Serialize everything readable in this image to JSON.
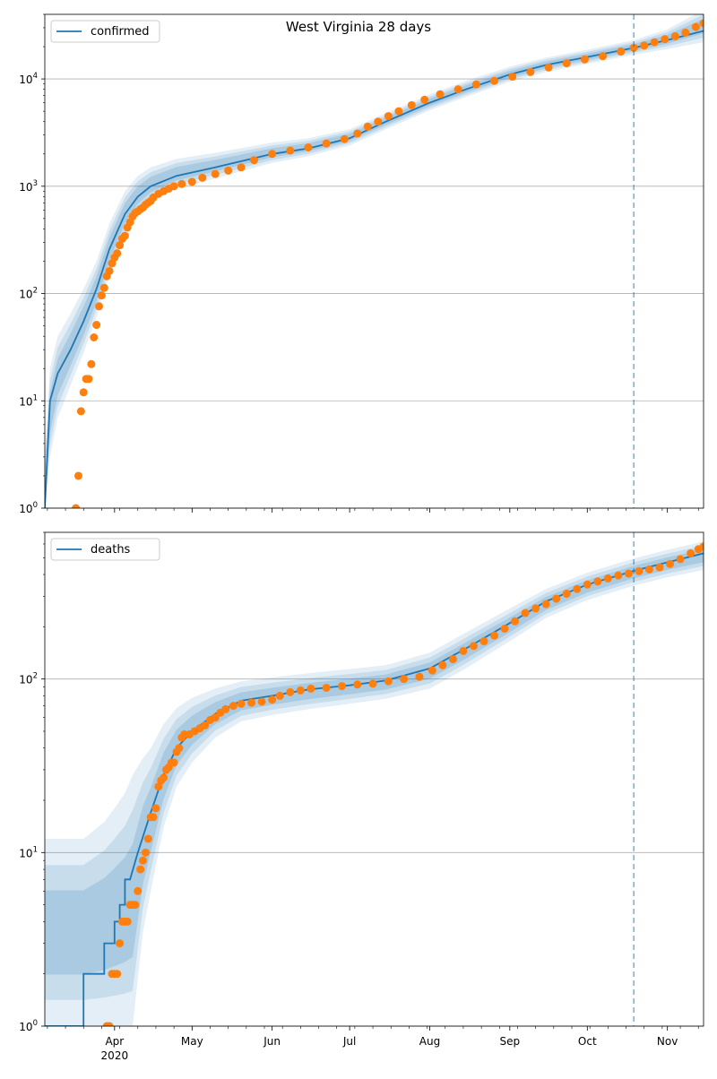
{
  "figure_title": "West Virginia 28 days",
  "colors": {
    "model": "#1f77b4",
    "band": "#1f77b4",
    "observed": "#ff7f0e",
    "forecast_line": "#1f77b4",
    "grid": "#b0b0b0"
  },
  "x_ticks": [
    {
      "date": "2020-04-01",
      "label": "Apr",
      "sublabel": "2020"
    },
    {
      "date": "2020-05-01",
      "label": "May"
    },
    {
      "date": "2020-06-01",
      "label": "Jun"
    },
    {
      "date": "2020-07-01",
      "label": "Jul"
    },
    {
      "date": "2020-08-01",
      "label": "Aug"
    },
    {
      "date": "2020-09-01",
      "label": "Sep"
    },
    {
      "date": "2020-10-01",
      "label": "Oct"
    },
    {
      "date": "2020-11-01",
      "label": "Nov"
    }
  ],
  "chart_data": [
    {
      "type": "line",
      "name": "confirmed",
      "legend": "confirmed",
      "legend_position": "top-left",
      "y_scale": "log",
      "ylim": [
        1,
        40000
      ],
      "xlim": [
        "2020-03-05",
        "2020-11-15"
      ],
      "forecast_start": "2020-10-19",
      "y_ticks": [
        {
          "value": 1,
          "base": "10",
          "exp": "0"
        },
        {
          "value": 10,
          "base": "10",
          "exp": "1"
        },
        {
          "value": 100,
          "base": "10",
          "exp": "2"
        },
        {
          "value": 1000,
          "base": "10",
          "exp": "3"
        },
        {
          "value": 10000,
          "base": "10",
          "exp": "4"
        }
      ],
      "model": [
        [
          "2020-03-05",
          1
        ],
        [
          "2020-03-07",
          10
        ],
        [
          "2020-03-10",
          18
        ],
        [
          "2020-03-15",
          30
        ],
        [
          "2020-03-20",
          55
        ],
        [
          "2020-03-25",
          110
        ],
        [
          "2020-03-30",
          260
        ],
        [
          "2020-04-05",
          550
        ],
        [
          "2020-04-10",
          800
        ],
        [
          "2020-04-15",
          1000
        ],
        [
          "2020-04-25",
          1250
        ],
        [
          "2020-05-10",
          1500
        ],
        [
          "2020-06-01",
          2000
        ],
        [
          "2020-06-15",
          2250
        ],
        [
          "2020-07-01",
          2800
        ],
        [
          "2020-07-15",
          4000
        ],
        [
          "2020-08-01",
          6000
        ],
        [
          "2020-08-15",
          8000
        ],
        [
          "2020-09-01",
          11000
        ],
        [
          "2020-09-15",
          13500
        ],
        [
          "2020-10-01",
          16000
        ],
        [
          "2020-10-19",
          19500
        ],
        [
          "2020-11-01",
          23000
        ],
        [
          "2020-11-15",
          28000
        ]
      ],
      "band": [
        [
          "2020-03-05",
          1,
          3
        ],
        [
          "2020-03-07",
          3,
          20
        ],
        [
          "2020-03-10",
          7,
          40
        ],
        [
          "2020-03-15",
          14,
          65
        ],
        [
          "2020-03-20",
          28,
          110
        ],
        [
          "2020-03-25",
          60,
          200
        ],
        [
          "2020-03-30",
          150,
          450
        ],
        [
          "2020-04-05",
          350,
          900
        ],
        [
          "2020-04-10",
          550,
          1250
        ],
        [
          "2020-04-15",
          720,
          1500
        ],
        [
          "2020-04-25",
          950,
          1800
        ],
        [
          "2020-05-10",
          1180,
          2050
        ],
        [
          "2020-06-01",
          1650,
          2550
        ],
        [
          "2020-06-15",
          1900,
          2800
        ],
        [
          "2020-07-01",
          2400,
          3400
        ],
        [
          "2020-07-15",
          3400,
          4800
        ],
        [
          "2020-08-01",
          5100,
          7200
        ],
        [
          "2020-08-15",
          6800,
          9600
        ],
        [
          "2020-09-01",
          9400,
          13000
        ],
        [
          "2020-09-15",
          11600,
          15800
        ],
        [
          "2020-10-01",
          13800,
          18700
        ],
        [
          "2020-10-19",
          16800,
          23000
        ],
        [
          "2020-11-01",
          19000,
          29000
        ],
        [
          "2020-11-15",
          22000,
          44000
        ]
      ],
      "observed": [
        [
          "2020-03-17",
          1
        ],
        [
          "2020-03-18",
          2
        ],
        [
          "2020-03-19",
          8
        ],
        [
          "2020-03-20",
          12
        ],
        [
          "2020-03-21",
          16
        ],
        [
          "2020-03-22",
          16
        ],
        [
          "2020-03-23",
          22
        ],
        [
          "2020-03-24",
          39
        ],
        [
          "2020-03-25",
          51
        ],
        [
          "2020-03-26",
          76
        ],
        [
          "2020-03-27",
          96
        ],
        [
          "2020-03-28",
          113
        ],
        [
          "2020-03-29",
          145
        ],
        [
          "2020-03-30",
          162
        ],
        [
          "2020-03-31",
          191
        ],
        [
          "2020-04-01",
          217
        ],
        [
          "2020-04-02",
          237
        ],
        [
          "2020-04-03",
          282
        ],
        [
          "2020-04-04",
          324
        ],
        [
          "2020-04-05",
          345
        ],
        [
          "2020-04-06",
          412
        ],
        [
          "2020-04-07",
          462
        ],
        [
          "2020-04-08",
          523
        ],
        [
          "2020-04-09",
          563
        ],
        [
          "2020-04-10",
          583
        ],
        [
          "2020-04-11",
          611
        ],
        [
          "2020-04-12",
          633
        ],
        [
          "2020-04-13",
          673
        ],
        [
          "2020-04-14",
          702
        ],
        [
          "2020-04-15",
          728
        ],
        [
          "2020-04-16",
          785
        ],
        [
          "2020-04-18",
          850
        ],
        [
          "2020-04-20",
          900
        ],
        [
          "2020-04-22",
          950
        ],
        [
          "2020-04-24",
          1000
        ],
        [
          "2020-04-27",
          1050
        ],
        [
          "2020-05-01",
          1100
        ],
        [
          "2020-05-05",
          1200
        ],
        [
          "2020-05-10",
          1300
        ],
        [
          "2020-05-15",
          1400
        ],
        [
          "2020-05-20",
          1500
        ],
        [
          "2020-05-25",
          1750
        ],
        [
          "2020-06-01",
          2000
        ],
        [
          "2020-06-08",
          2150
        ],
        [
          "2020-06-15",
          2300
        ],
        [
          "2020-06-22",
          2500
        ],
        [
          "2020-06-29",
          2750
        ],
        [
          "2020-07-04",
          3100
        ],
        [
          "2020-07-08",
          3600
        ],
        [
          "2020-07-12",
          4000
        ],
        [
          "2020-07-16",
          4500
        ],
        [
          "2020-07-20",
          5000
        ],
        [
          "2020-07-25",
          5700
        ],
        [
          "2020-07-30",
          6400
        ],
        [
          "2020-08-05",
          7200
        ],
        [
          "2020-08-12",
          8000
        ],
        [
          "2020-08-19",
          8900
        ],
        [
          "2020-08-26",
          9600
        ],
        [
          "2020-09-02",
          10500
        ],
        [
          "2020-09-09",
          11600
        ],
        [
          "2020-09-16",
          12800
        ],
        [
          "2020-09-23",
          14000
        ],
        [
          "2020-09-30",
          15200
        ],
        [
          "2020-10-07",
          16300
        ],
        [
          "2020-10-14",
          18000
        ],
        [
          "2020-10-19",
          19500
        ],
        [
          "2020-10-23",
          20500
        ],
        [
          "2020-10-27",
          22000
        ],
        [
          "2020-10-31",
          23500
        ],
        [
          "2020-11-04",
          25000
        ],
        [
          "2020-11-08",
          27000
        ],
        [
          "2020-11-12",
          30500
        ],
        [
          "2020-11-15",
          33000
        ]
      ]
    },
    {
      "type": "line",
      "name": "deaths",
      "legend": "deaths",
      "legend_position": "top-left",
      "y_scale": "log",
      "ylim": [
        1,
        700
      ],
      "xlim": [
        "2020-03-05",
        "2020-11-15"
      ],
      "forecast_start": "2020-10-19",
      "y_ticks": [
        {
          "value": 1,
          "base": "10",
          "exp": "0"
        },
        {
          "value": 10,
          "base": "10",
          "exp": "1"
        },
        {
          "value": 100,
          "base": "10",
          "exp": "2"
        }
      ],
      "model": [
        [
          "2020-03-05",
          1
        ],
        [
          "2020-03-20",
          1
        ],
        [
          "2020-03-20",
          2
        ],
        [
          "2020-03-28",
          2
        ],
        [
          "2020-03-28",
          3
        ],
        [
          "2020-04-01",
          3
        ],
        [
          "2020-04-01",
          4
        ],
        [
          "2020-04-03",
          4
        ],
        [
          "2020-04-03",
          5
        ],
        [
          "2020-04-05",
          5
        ],
        [
          "2020-04-05",
          7
        ],
        [
          "2020-04-07",
          7
        ],
        [
          "2020-04-10",
          10
        ],
        [
          "2020-04-15",
          17
        ],
        [
          "2020-04-20",
          28
        ],
        [
          "2020-04-25",
          40
        ],
        [
          "2020-05-01",
          50
        ],
        [
          "2020-05-10",
          63
        ],
        [
          "2020-05-20",
          75
        ],
        [
          "2020-06-01",
          80
        ],
        [
          "2020-06-15",
          87
        ],
        [
          "2020-07-01",
          92
        ],
        [
          "2020-07-15",
          98
        ],
        [
          "2020-08-01",
          115
        ],
        [
          "2020-08-15",
          150
        ],
        [
          "2020-09-01",
          210
        ],
        [
          "2020-09-15",
          280
        ],
        [
          "2020-10-01",
          350
        ],
        [
          "2020-10-19",
          420
        ],
        [
          "2020-11-01",
          470
        ],
        [
          "2020-11-15",
          530
        ]
      ],
      "band": [
        [
          "2020-03-05",
          1,
          12
        ],
        [
          "2020-03-20",
          1,
          12
        ],
        [
          "2020-03-28",
          1,
          15
        ],
        [
          "2020-04-01",
          1,
          18
        ],
        [
          "2020-04-05",
          1,
          22
        ],
        [
          "2020-04-08",
          1,
          28
        ],
        [
          "2020-04-12",
          3.5,
          35
        ],
        [
          "2020-04-15",
          6,
          40
        ],
        [
          "2020-04-20",
          14,
          55
        ],
        [
          "2020-04-25",
          24,
          68
        ],
        [
          "2020-05-01",
          33,
          78
        ],
        [
          "2020-05-10",
          46,
          88
        ],
        [
          "2020-05-20",
          57,
          97
        ],
        [
          "2020-06-01",
          62,
          102
        ],
        [
          "2020-06-15",
          67,
          108
        ],
        [
          "2020-07-01",
          72,
          114
        ],
        [
          "2020-07-15",
          77,
          120
        ],
        [
          "2020-08-01",
          88,
          142
        ],
        [
          "2020-08-15",
          115,
          185
        ],
        [
          "2020-09-01",
          165,
          255
        ],
        [
          "2020-09-15",
          225,
          330
        ],
        [
          "2020-10-01",
          285,
          410
        ],
        [
          "2020-10-19",
          345,
          495
        ],
        [
          "2020-11-01",
          385,
          555
        ],
        [
          "2020-11-15",
          425,
          620
        ]
      ],
      "observed": [
        [
          "2020-03-29",
          1
        ],
        [
          "2020-03-30",
          1
        ],
        [
          "2020-03-31",
          2
        ],
        [
          "2020-04-01",
          2
        ],
        [
          "2020-04-02",
          2
        ],
        [
          "2020-04-03",
          3
        ],
        [
          "2020-04-04",
          4
        ],
        [
          "2020-04-05",
          4
        ],
        [
          "2020-04-06",
          4
        ],
        [
          "2020-04-07",
          5
        ],
        [
          "2020-04-08",
          5
        ],
        [
          "2020-04-09",
          5
        ],
        [
          "2020-04-10",
          6
        ],
        [
          "2020-04-11",
          8
        ],
        [
          "2020-04-12",
          9
        ],
        [
          "2020-04-13",
          10
        ],
        [
          "2020-04-14",
          12
        ],
        [
          "2020-04-15",
          16
        ],
        [
          "2020-04-16",
          16
        ],
        [
          "2020-04-17",
          18
        ],
        [
          "2020-04-18",
          24
        ],
        [
          "2020-04-19",
          26
        ],
        [
          "2020-04-20",
          27
        ],
        [
          "2020-04-21",
          30
        ],
        [
          "2020-04-22",
          31
        ],
        [
          "2020-04-23",
          33
        ],
        [
          "2020-04-24",
          33
        ],
        [
          "2020-04-25",
          38
        ],
        [
          "2020-04-26",
          40
        ],
        [
          "2020-04-27",
          46
        ],
        [
          "2020-04-28",
          48
        ],
        [
          "2020-04-30",
          48
        ],
        [
          "2020-05-02",
          50
        ],
        [
          "2020-05-04",
          52
        ],
        [
          "2020-05-06",
          54
        ],
        [
          "2020-05-08",
          58
        ],
        [
          "2020-05-10",
          60
        ],
        [
          "2020-05-12",
          64
        ],
        [
          "2020-05-14",
          67
        ],
        [
          "2020-05-17",
          70
        ],
        [
          "2020-05-20",
          72
        ],
        [
          "2020-05-24",
          73
        ],
        [
          "2020-05-28",
          74
        ],
        [
          "2020-06-01",
          76
        ],
        [
          "2020-06-04",
          80
        ],
        [
          "2020-06-08",
          84
        ],
        [
          "2020-06-12",
          86
        ],
        [
          "2020-06-16",
          88
        ],
        [
          "2020-06-22",
          89
        ],
        [
          "2020-06-28",
          91
        ],
        [
          "2020-07-04",
          93
        ],
        [
          "2020-07-10",
          94
        ],
        [
          "2020-07-16",
          97
        ],
        [
          "2020-07-22",
          100
        ],
        [
          "2020-07-28",
          103
        ],
        [
          "2020-08-02",
          112
        ],
        [
          "2020-08-06",
          120
        ],
        [
          "2020-08-10",
          130
        ],
        [
          "2020-08-14",
          145
        ],
        [
          "2020-08-18",
          155
        ],
        [
          "2020-08-22",
          165
        ],
        [
          "2020-08-26",
          178
        ],
        [
          "2020-08-30",
          195
        ],
        [
          "2020-09-03",
          215
        ],
        [
          "2020-09-07",
          240
        ],
        [
          "2020-09-11",
          255
        ],
        [
          "2020-09-15",
          270
        ],
        [
          "2020-09-19",
          290
        ],
        [
          "2020-09-23",
          310
        ],
        [
          "2020-09-27",
          330
        ],
        [
          "2020-10-01",
          350
        ],
        [
          "2020-10-05",
          365
        ],
        [
          "2020-10-09",
          380
        ],
        [
          "2020-10-13",
          395
        ],
        [
          "2020-10-17",
          405
        ],
        [
          "2020-10-21",
          418
        ],
        [
          "2020-10-25",
          428
        ],
        [
          "2020-10-29",
          440
        ],
        [
          "2020-11-02",
          460
        ],
        [
          "2020-11-06",
          490
        ],
        [
          "2020-11-10",
          530
        ],
        [
          "2020-11-13",
          560
        ],
        [
          "2020-11-15",
          580
        ]
      ]
    }
  ]
}
